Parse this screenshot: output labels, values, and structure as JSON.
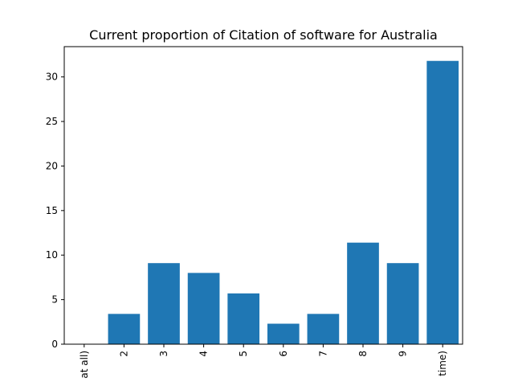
{
  "chart_data": {
    "type": "bar",
    "title": "Current proportion of Citation of software for Australia",
    "xlabel": "",
    "ylabel": "",
    "categories": [
      "at all)",
      "2",
      "3",
      "4",
      "5",
      "6",
      "7",
      "8",
      "9",
      "time)"
    ],
    "values": [
      0,
      3.4,
      9.1,
      8.0,
      5.7,
      2.3,
      3.4,
      11.4,
      9.1,
      31.8
    ],
    "ylim": [
      0,
      33.4
    ],
    "yticks": [
      0,
      5,
      10,
      15,
      20,
      25,
      30
    ],
    "grid": false,
    "bar_color": "#1f77b4"
  }
}
